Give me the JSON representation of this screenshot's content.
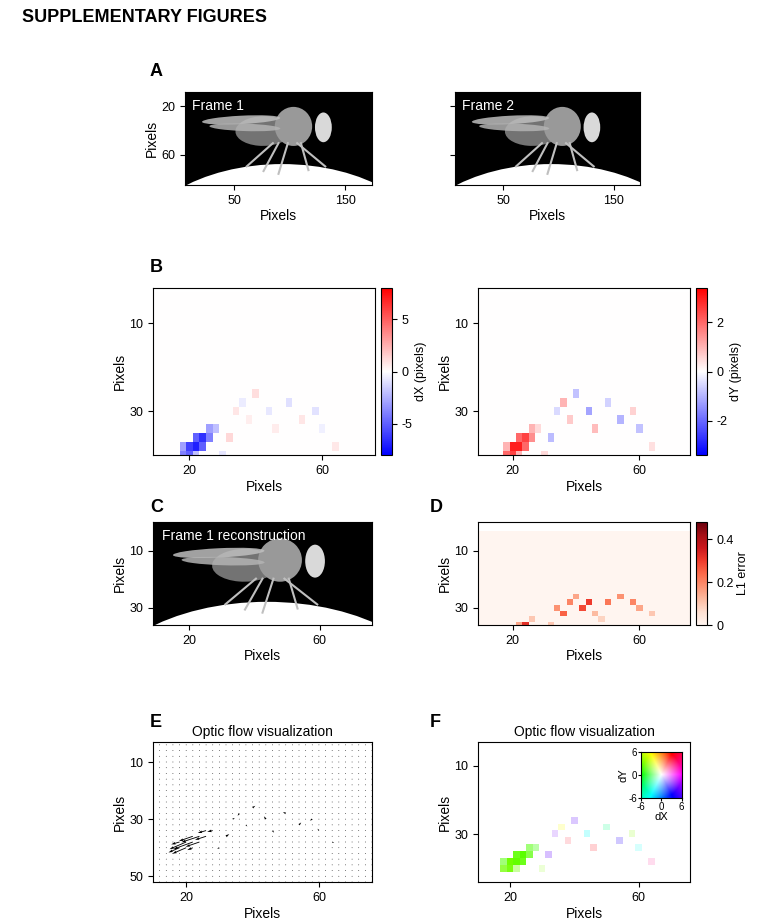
{
  "title": "SUPPLEMENTARY FIGURES",
  "flow": {
    "x": [
      10,
      12,
      14,
      16,
      18,
      20,
      22,
      24,
      26,
      28,
      30,
      32,
      34,
      36,
      38,
      40,
      42,
      44,
      46,
      48,
      50,
      52,
      54,
      56,
      58,
      60,
      62,
      64,
      66,
      68,
      70,
      72,
      74,
      76
    ],
    "y": [
      4,
      6,
      8,
      10,
      12,
      14,
      16,
      18,
      20,
      22,
      24,
      26,
      28,
      30,
      32,
      34,
      36,
      38,
      40,
      42,
      44,
      46,
      48,
      50,
      52
    ],
    "cells": [
      [
        8,
        15,
        -3,
        1
      ],
      [
        9,
        15,
        -2,
        0.5
      ],
      [
        6,
        16,
        -5,
        2
      ],
      [
        7,
        16,
        -6.5,
        2.5
      ],
      [
        8,
        16,
        -4,
        1.5
      ],
      [
        4,
        17,
        -3,
        1
      ],
      [
        5,
        17,
        -6,
        3
      ],
      [
        6,
        17,
        -7,
        3
      ],
      [
        7,
        17,
        -5,
        2
      ],
      [
        4,
        18,
        -4,
        2
      ],
      [
        5,
        18,
        -5,
        2.5
      ],
      [
        6,
        18,
        -2,
        1
      ],
      [
        12,
        13,
        0.8,
        -0.5
      ],
      [
        13,
        12,
        -0.6,
        1.0
      ],
      [
        14,
        14,
        0.5,
        0.7
      ],
      [
        15,
        11,
        1.0,
        -0.8
      ],
      [
        17,
        13,
        -0.7,
        -1.2
      ],
      [
        18,
        15,
        0.6,
        0.9
      ],
      [
        20,
        12,
        -1.0,
        -0.6
      ],
      [
        22,
        14,
        0.8,
        -1.0
      ],
      [
        24,
        13,
        -0.9,
        0.6
      ],
      [
        25,
        15,
        -0.5,
        -0.8
      ],
      [
        27,
        17,
        0.7,
        0.4
      ],
      [
        11,
        16,
        1.2,
        -0.9
      ],
      [
        10,
        18,
        -0.8,
        0.5
      ]
    ]
  },
  "chart_data": [
    {
      "panel": "A",
      "type": "image",
      "label": "Frame 1",
      "xlabel": "Pixels",
      "ylabel": "Pixels",
      "xlim": [
        6,
        174
      ],
      "ylim": [
        85,
        8
      ],
      "xticks": [
        50,
        150
      ],
      "yticks": [
        20,
        60
      ]
    },
    {
      "type": "image",
      "label": "Frame 2",
      "xlabel": "Pixels",
      "xlim": [
        6,
        174
      ],
      "ylim": [
        85,
        8
      ],
      "xticks": [
        50,
        150
      ],
      "yticks": [
        20,
        60
      ],
      "tick_labels": "x"
    },
    {
      "panel": "B",
      "type": "heatmap",
      "field": "dX",
      "xlabel": "Pixels",
      "ylabel": "Pixels",
      "xlim": [
        9,
        76
      ],
      "ylim": [
        40,
        2
      ],
      "xticks": [
        20,
        60
      ],
      "yticks": [
        10,
        30
      ],
      "colorbar": {
        "label": "dX (pixels)",
        "range": [
          -8,
          8
        ],
        "ticks": [
          -5,
          0,
          5
        ]
      }
    },
    {
      "type": "heatmap",
      "field": "dY",
      "xlabel": "Pixels",
      "ylabel": "Pixels",
      "xlim": [
        9,
        76
      ],
      "ylim": [
        40,
        2
      ],
      "xticks": [
        20,
        60
      ],
      "yticks": [
        10,
        30
      ],
      "colorbar": {
        "label": "dY (pixels)",
        "range": [
          -3.4,
          3.4
        ],
        "ticks": [
          -2,
          0,
          2
        ]
      }
    },
    {
      "panel": "C",
      "type": "image",
      "label": "Frame 1 reconstruction",
      "xlabel": "Pixels",
      "ylabel": "Pixels",
      "xlim": [
        9,
        76
      ],
      "ylim": [
        36,
        0
      ],
      "xticks": [
        20,
        60
      ],
      "yticks": [
        10,
        30
      ]
    },
    {
      "panel": "D",
      "type": "heatmap",
      "xlabel": "Pixels",
      "ylabel": "Pixels",
      "xlim": [
        9,
        76
      ],
      "ylim": [
        36,
        0
      ],
      "xticks": [
        20,
        60
      ],
      "yticks": [
        10,
        30
      ],
      "cells": [
        [
          6,
          17,
          0.45
        ],
        [
          7,
          16,
          0.32
        ],
        [
          5,
          17,
          0.2
        ],
        [
          6,
          16,
          0.15
        ],
        [
          5,
          18,
          0.12
        ],
        [
          8,
          15,
          0.1
        ],
        [
          12,
          13,
          0.18
        ],
        [
          13,
          14,
          0.25
        ],
        [
          14,
          12,
          0.2
        ],
        [
          15,
          11,
          0.15
        ],
        [
          16,
          13,
          0.28
        ],
        [
          17,
          12,
          0.3
        ],
        [
          18,
          14,
          0.12
        ],
        [
          20,
          12,
          0.22
        ],
        [
          22,
          11,
          0.18
        ],
        [
          24,
          12,
          0.2
        ],
        [
          25,
          13,
          0.15
        ],
        [
          27,
          14,
          0.1
        ],
        [
          11,
          16,
          0.1
        ],
        [
          10,
          18,
          0.08
        ],
        [
          19,
          15,
          0.08
        ]
      ],
      "colorbar": {
        "label": "L1 error",
        "range": [
          0,
          0.48
        ],
        "ticks": [
          0,
          0.2,
          0.4
        ]
      }
    },
    {
      "panel": "E",
      "type": "quiver",
      "title": "Optic flow visualization",
      "xlabel": "Pixels",
      "ylabel": "Pixels",
      "xlim": [
        10,
        76
      ],
      "ylim": [
        52,
        3
      ],
      "xticks": [
        20,
        60
      ],
      "yticks": [
        10,
        30,
        50
      ]
    },
    {
      "panel": "F",
      "type": "flow_color",
      "title": "Optic flow visualization",
      "xlabel": "Pixels",
      "ylabel": "Pixels",
      "xlim": [
        10,
        76
      ],
      "ylim": [
        44,
        3
      ],
      "xticks": [
        20,
        60
      ],
      "yticks": [
        10,
        30
      ],
      "key": {
        "xlabel": "dX",
        "ylabel": "dY",
        "range": [
          -6,
          6
        ],
        "xticks": [
          -6,
          0,
          6
        ],
        "yticks": [
          -6,
          0,
          6
        ]
      }
    }
  ]
}
